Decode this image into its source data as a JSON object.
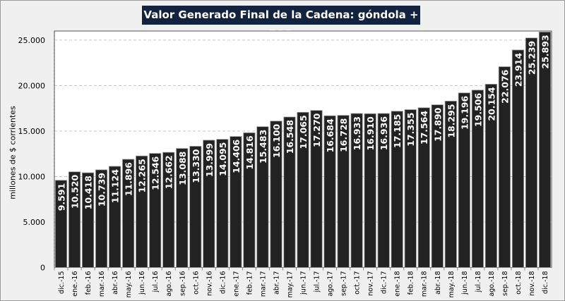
{
  "chart_data": {
    "type": "bar",
    "title": "Valor Generado Final de la Cadena: góndola + FOB",
    "xlabel": "",
    "ylabel": "millones de $ corrientes",
    "ylim": [
      0,
      26000
    ],
    "yticks": [
      0,
      5000,
      10000,
      15000,
      20000,
      25000
    ],
    "ytick_labels": [
      "0",
      "5.000",
      "10.000",
      "15.000",
      "20.000",
      "25.000"
    ],
    "grid": "horizontal dashed",
    "bar_color": "#222222",
    "title_bg_color": "#13233f",
    "categories": [
      "dic.-15",
      "ene.-16",
      "feb.-16",
      "mar.-16",
      "abr.-16",
      "may.-16",
      "jun.-16",
      "jul.-16",
      "ago.-16",
      "sep.-16",
      "oct.-16",
      "nov.-16",
      "dic.-16",
      "ene.-17",
      "feb.-17",
      "mar.-17",
      "abr.-17",
      "may.-17",
      "jun.-17",
      "jul.-17",
      "ago.-17",
      "sep.-17",
      "oct.-17",
      "nov.-17",
      "dic.-17",
      "ene.-18",
      "feb.-18",
      "mar.-18",
      "abr.-18",
      "may.-18",
      "jun.-18",
      "jul.-18",
      "ago.-18",
      "sep.-18",
      "oct.-18",
      "nov.-18",
      "dic.-18"
    ],
    "values": [
      9591,
      10520,
      10418,
      10739,
      11124,
      11896,
      12265,
      12546,
      12662,
      13088,
      13330,
      13999,
      14095,
      14406,
      14816,
      15483,
      16100,
      16548,
      17065,
      17270,
      16684,
      16728,
      16933,
      16910,
      16936,
      17185,
      17355,
      17564,
      17890,
      18295,
      19196,
      19506,
      20154,
      22076,
      23914,
      25239,
      25893
    ],
    "value_labels": [
      "9.591",
      "10.520",
      "10.418",
      "10.739",
      "11.124",
      "11.896",
      "12.265",
      "12.546",
      "12.662",
      "13.088",
      "13.330",
      "13.999",
      "14.095",
      "14.406",
      "14.816",
      "15.483",
      "16.100",
      "16.548",
      "17.065",
      "17.270",
      "16.684",
      "16.728",
      "16.933",
      "16.910",
      "16.936",
      "17.185",
      "17.355",
      "17.564",
      "17.890",
      "18.295",
      "19.196",
      "19.506",
      "20.154",
      "22.076",
      "23.914",
      "25.239",
      "25.893"
    ]
  }
}
